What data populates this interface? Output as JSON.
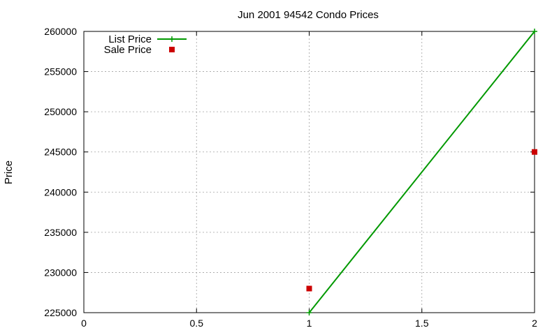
{
  "chart_data": {
    "type": "line",
    "title": "Jun 2001 94542 Condo Prices",
    "xlabel": "",
    "ylabel": "Price",
    "xlim": [
      0,
      2
    ],
    "ylim": [
      225000,
      260000
    ],
    "x_ticks": [
      0,
      0.5,
      1,
      1.5,
      2
    ],
    "x_tick_labels": [
      "0",
      "0.5",
      "1",
      "1.5",
      "2"
    ],
    "y_ticks": [
      225000,
      230000,
      235000,
      240000,
      245000,
      250000,
      255000,
      260000
    ],
    "y_tick_labels": [
      "225000",
      "230000",
      "235000",
      "240000",
      "245000",
      "250000",
      "255000",
      "260000"
    ],
    "grid": true,
    "legend_position": "top-left",
    "series": [
      {
        "name": "List Price",
        "style": "line+cross",
        "color": "#009900",
        "points": [
          {
            "x": 1,
            "y": 225000
          },
          {
            "x": 2,
            "y": 260000
          }
        ]
      },
      {
        "name": "Sale Price",
        "style": "square",
        "color": "#cc0000",
        "points": [
          {
            "x": 1,
            "y": 228000
          },
          {
            "x": 2,
            "y": 245000
          }
        ]
      }
    ]
  }
}
